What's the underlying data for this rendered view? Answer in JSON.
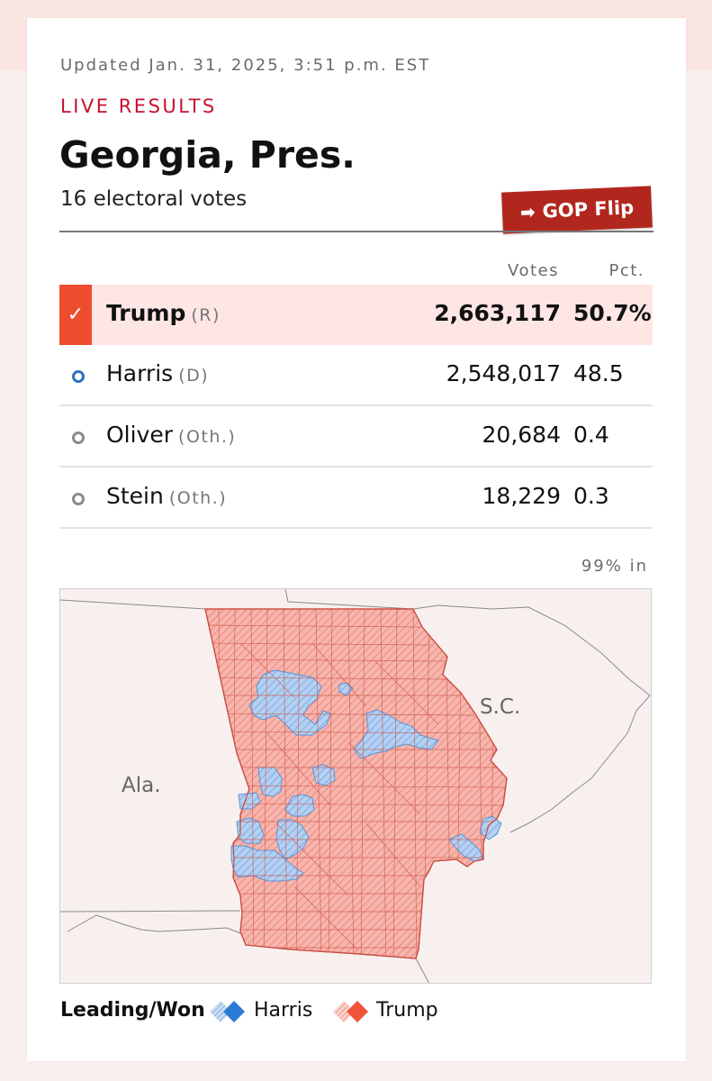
{
  "header": {
    "updated": "Updated Jan. 31, 2025, 3:51 p.m. EST",
    "live_label": "LIVE RESULTS",
    "race_title": "Georgia, Pres.",
    "electoral_votes": "16 electoral votes",
    "flip_badge": "GOP Flip"
  },
  "table": {
    "columns": {
      "votes": "Votes",
      "pct": "Pct."
    },
    "candidates": [
      {
        "name": "Trump",
        "party": "(R)",
        "votes": "2,663,117",
        "pct": "50.7%",
        "winner": true
      },
      {
        "name": "Harris",
        "party": "(D)",
        "votes": "2,548,017",
        "pct": "48.5",
        "winner": false
      },
      {
        "name": "Oliver",
        "party": "(Oth.)",
        "votes": "20,684",
        "pct": "0.4",
        "winner": false
      },
      {
        "name": "Stein",
        "party": "(Oth.)",
        "votes": "18,229",
        "pct": "0.3",
        "winner": false
      }
    ],
    "reporting": "99% in"
  },
  "map": {
    "state_labels": {
      "sc": "S.C.",
      "ala": "Ala."
    },
    "colors": {
      "trump_fill": "#f4a49a",
      "trump_stroke": "#e0675a",
      "harris_fill": "#a9c8ef",
      "harris_stroke": "#5b93d6"
    }
  },
  "legend": {
    "title": "Leading/Won",
    "harris": "Harris",
    "trump": "Trump",
    "colors": {
      "harris": "#2b7bd6",
      "trump": "#f0553a"
    }
  }
}
